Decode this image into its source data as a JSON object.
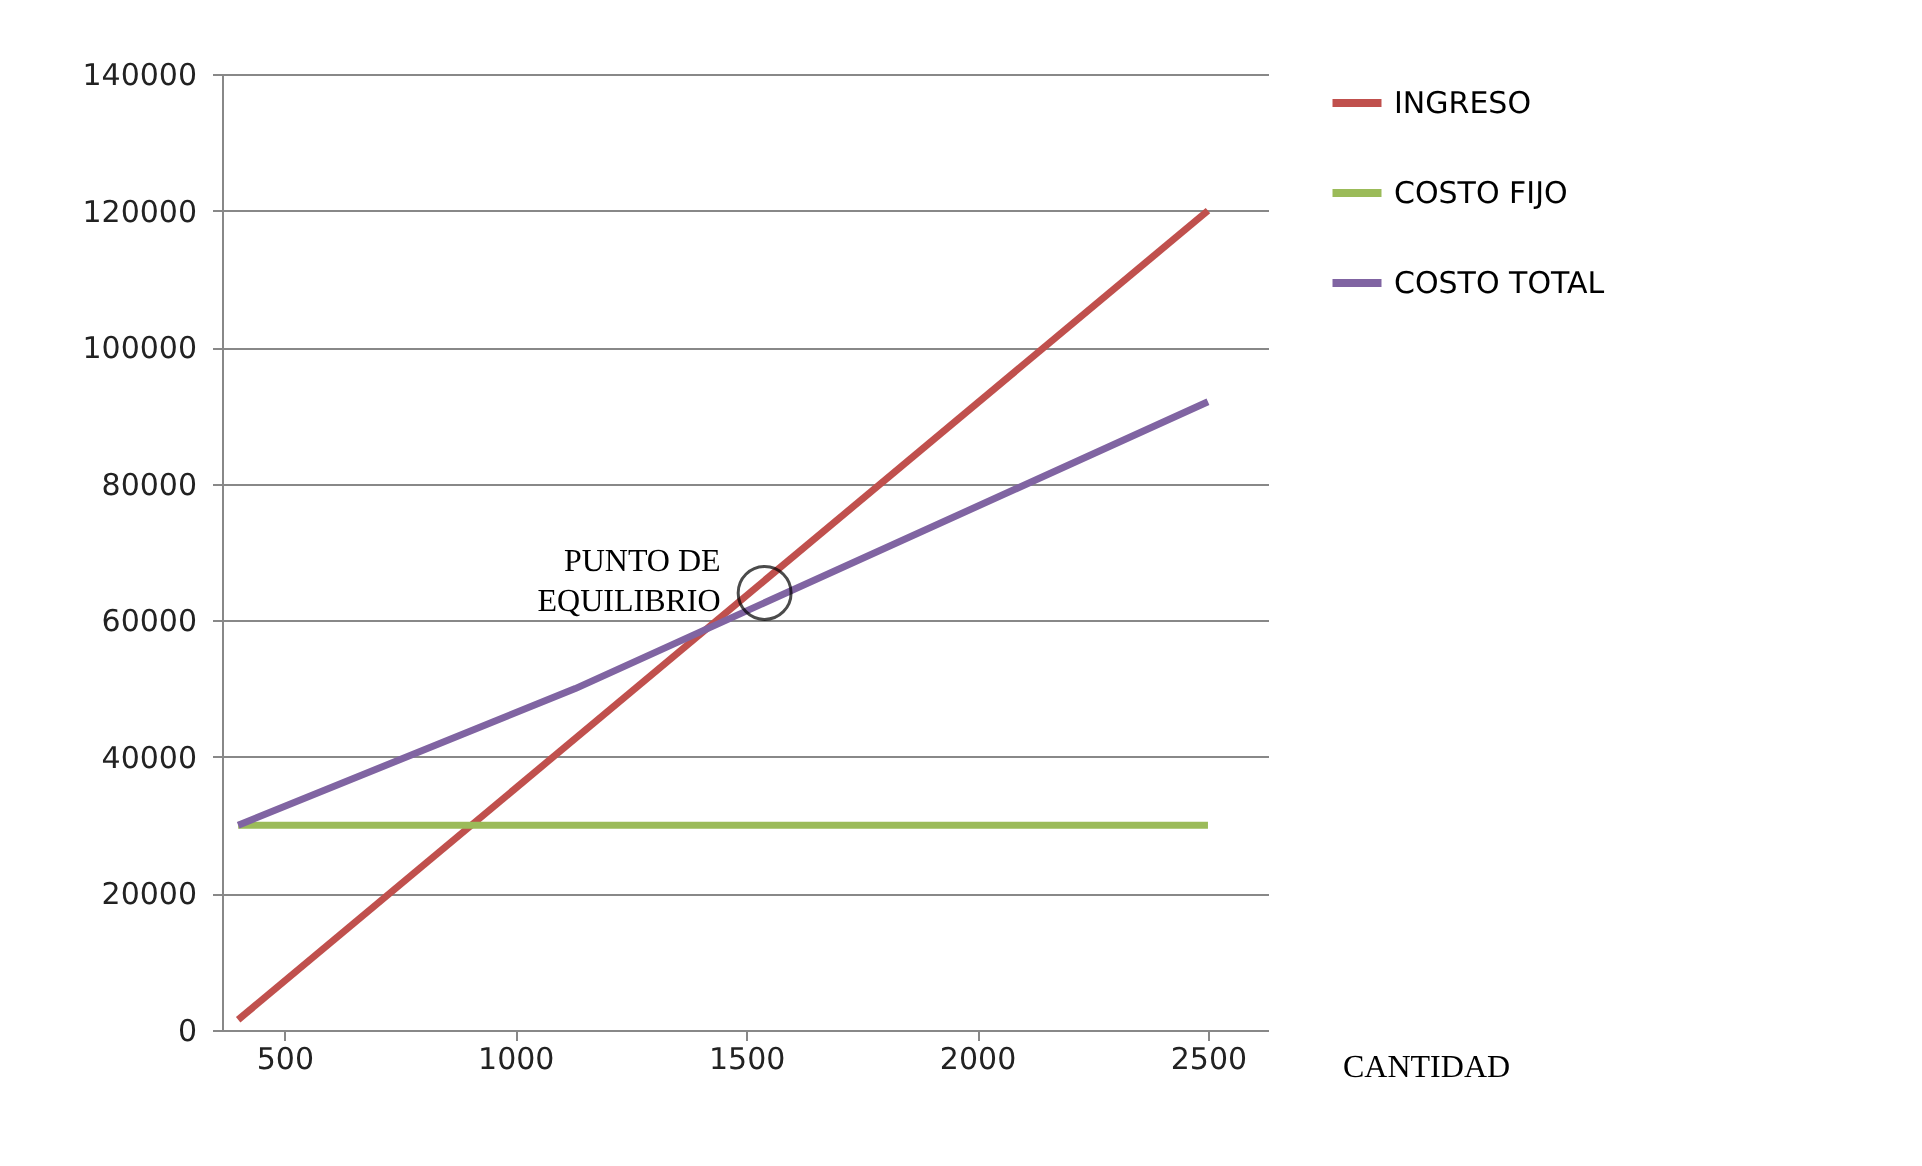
{
  "chart_data": {
    "type": "line",
    "xlabel": "CANTIDAD",
    "xlim": [
      365,
      2630
    ],
    "xticks": [
      500,
      1000,
      1500,
      2000,
      2500
    ],
    "ylim": [
      0,
      140000
    ],
    "yticks": [
      0,
      20000,
      40000,
      60000,
      80000,
      100000,
      120000,
      140000
    ],
    "grid": "y",
    "legend": "right",
    "marker": "none",
    "line_style": "solid",
    "series": [
      {
        "name": "INGRESO",
        "color": "#c0504d",
        "x": [
          400,
          2500
        ],
        "values": [
          1500,
          120000
        ]
      },
      {
        "name": "COSTO FIJO",
        "color": "#9bbb59",
        "x": [
          400,
          2500
        ],
        "values": [
          30000,
          30000
        ]
      },
      {
        "name": "COSTO TOTAL",
        "color": "#8064a2",
        "x": [
          400,
          1130,
          2500
        ],
        "values": [
          30000,
          50000,
          92000
        ]
      }
    ],
    "annotations": [
      {
        "text": "PUNTO DE EQUILIBRIO",
        "x": 1540,
        "y": 64000
      }
    ]
  }
}
